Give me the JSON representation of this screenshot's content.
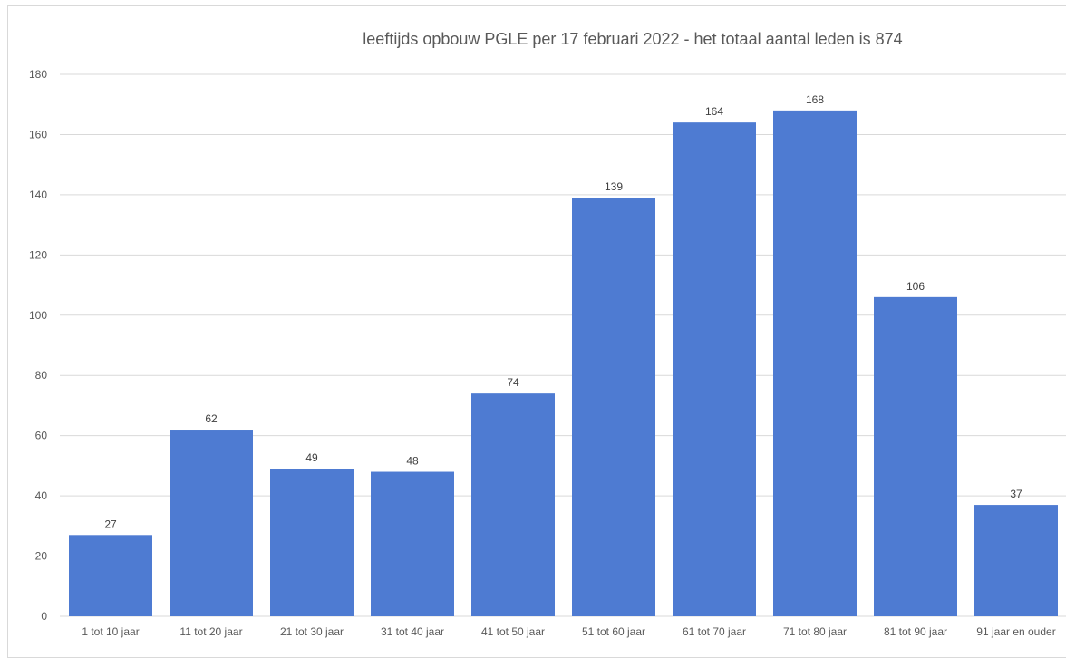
{
  "chart_data": {
    "type": "bar",
    "title": "leeftijds opbouw PGLE per 17 februari 2022 - het totaal aantal leden is 874",
    "categories": [
      "1 tot 10 jaar",
      "11 tot 20 jaar",
      "21 tot 30 jaar",
      "31 tot 40 jaar",
      "41 tot 50 jaar",
      "51 tot 60 jaar",
      "61 tot 70 jaar",
      "71 tot 80 jaar",
      "81 tot 90 jaar",
      "91 jaar en ouder"
    ],
    "values": [
      27,
      62,
      49,
      48,
      74,
      139,
      164,
      168,
      106,
      37
    ],
    "xlabel": "",
    "ylabel": "",
    "ylim": [
      0,
      180
    ],
    "yticks": [
      0,
      20,
      40,
      60,
      80,
      100,
      120,
      140,
      160,
      180
    ],
    "grid": true,
    "legend": "none",
    "bar_color": "#4e7bd2"
  }
}
